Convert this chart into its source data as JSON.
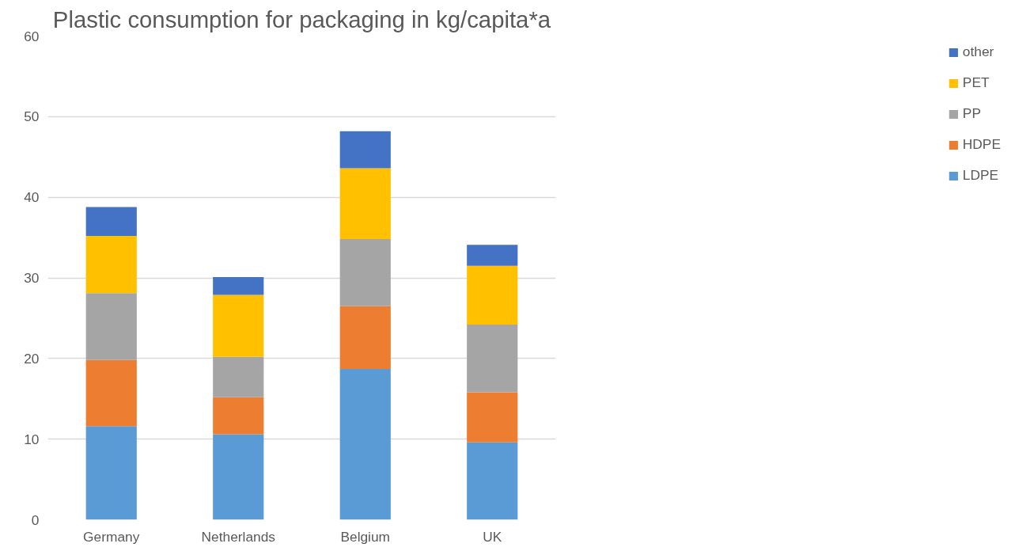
{
  "chart_data": {
    "type": "bar",
    "title": "Plastic consumption for packaging in kg/capita*a",
    "categories": [
      "Germany",
      "Netherlands",
      "Belgium",
      "UK"
    ],
    "stacked": true,
    "series": [
      {
        "name": "LDPE",
        "color": "#5b9bd5",
        "values": [
          11.6,
          10.6,
          18.7,
          9.6
        ]
      },
      {
        "name": "HDPE",
        "color": "#ed7d31",
        "values": [
          8.2,
          4.6,
          7.8,
          6.2
        ]
      },
      {
        "name": "PP",
        "color": "#a5a5a5",
        "values": [
          8.3,
          5.0,
          8.3,
          8.4
        ]
      },
      {
        "name": "PET",
        "color": "#ffc000",
        "values": [
          7.1,
          7.7,
          8.8,
          7.3
        ]
      },
      {
        "name": "other",
        "color": "#4472c4",
        "values": [
          3.6,
          2.2,
          4.6,
          2.6
        ]
      }
    ],
    "ylim": [
      0,
      60
    ],
    "yticks": [
      0,
      10,
      20,
      30,
      40,
      50,
      60
    ],
    "grid": "y",
    "legend": "right"
  }
}
